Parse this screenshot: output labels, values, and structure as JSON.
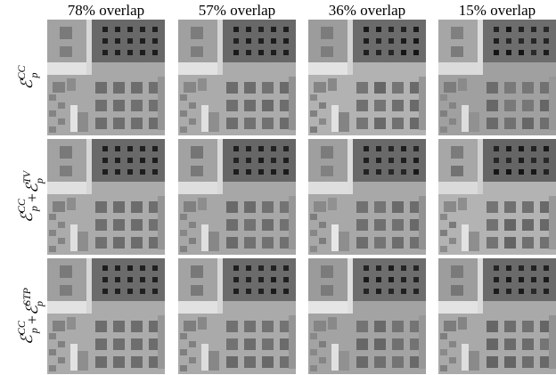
{
  "figure": {
    "column_headers": [
      "78% overlap",
      "57% overlap",
      "36% overlap",
      "15% overlap"
    ],
    "row_labels": [
      [
        {
          "symbol": "ℰ",
          "sub": "p",
          "sup": "CC"
        }
      ],
      [
        {
          "symbol": "ℰ",
          "sub": "p",
          "sup": "CC"
        },
        "+",
        {
          "symbol": "ℰ",
          "sub": "p",
          "sup": "TV"
        }
      ],
      [
        {
          "symbol": "ℰ",
          "sub": "p",
          "sup": "CC"
        },
        "+",
        {
          "symbol": "ℰ",
          "sub": "p",
          "sup": "STP"
        }
      ]
    ]
  }
}
